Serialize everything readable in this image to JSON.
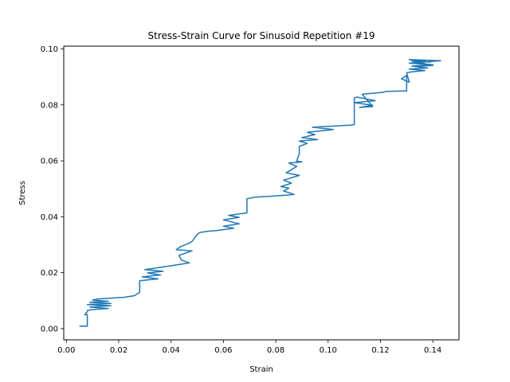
{
  "chart_data": {
    "type": "line",
    "title": "Stress-Strain Curve for Sinusoid Repetition #19",
    "xlabel": "Strain",
    "ylabel": "Stress",
    "xlim": [
      -0.001,
      0.15
    ],
    "ylim": [
      -0.004,
      0.101
    ],
    "xticks": [
      0.0,
      0.02,
      0.04,
      0.06,
      0.08,
      0.1,
      0.12,
      0.14
    ],
    "xtick_labels": [
      "0.00",
      "0.02",
      "0.04",
      "0.06",
      "0.08",
      "0.10",
      "0.12",
      "0.14"
    ],
    "yticks": [
      0.0,
      0.02,
      0.04,
      0.06,
      0.08,
      0.1
    ],
    "ytick_labels": [
      "0.00",
      "0.02",
      "0.04",
      "0.06",
      "0.08",
      "0.10"
    ],
    "grid": false,
    "line_color": "#1f77b4",
    "series": [
      {
        "x": [
          0.005,
          0.008,
          0.008,
          0.007,
          0.008,
          0.008,
          0.01,
          0.016,
          0.009,
          0.017,
          0.008,
          0.017,
          0.009,
          0.016,
          0.01,
          0.012,
          0.017,
          0.02,
          0.022,
          0.026,
          0.027,
          0.028,
          0.028,
          0.035,
          0.029,
          0.036,
          0.031,
          0.037,
          0.03,
          0.033,
          0.047,
          0.044,
          0.043,
          0.048,
          0.042,
          0.044,
          0.046,
          0.047,
          0.048,
          0.05,
          0.051,
          0.055,
          0.057,
          0.064,
          0.06,
          0.066,
          0.06,
          0.066,
          0.062,
          0.069,
          0.069,
          0.072,
          0.079,
          0.084,
          0.087,
          0.083,
          0.085,
          0.082,
          0.086,
          0.083,
          0.089,
          0.084,
          0.088,
          0.085,
          0.09,
          0.088,
          0.089,
          0.089,
          0.092,
          0.089,
          0.096,
          0.09,
          0.095,
          0.092,
          0.102,
          0.094,
          0.109,
          0.11,
          0.11,
          0.111,
          0.118,
          0.11,
          0.117,
          0.112,
          0.117,
          0.113,
          0.121,
          0.122,
          0.13,
          0.13,
          0.128,
          0.131,
          0.13,
          0.132,
          0.137,
          0.131,
          0.138,
          0.132,
          0.14,
          0.131,
          0.143,
          0.131,
          0.139,
          0.132,
          0.14,
          0.134
        ],
        "y": [
          0.0009,
          0.0009,
          0.005,
          0.005,
          0.006,
          0.0065,
          0.0068,
          0.0072,
          0.0077,
          0.0082,
          0.0086,
          0.009,
          0.0094,
          0.0098,
          0.0102,
          0.0106,
          0.0109,
          0.0111,
          0.0112,
          0.0118,
          0.0124,
          0.013,
          0.0171,
          0.0178,
          0.0185,
          0.0192,
          0.0199,
          0.0205,
          0.0211,
          0.0215,
          0.0235,
          0.0245,
          0.0262,
          0.0278,
          0.0282,
          0.0295,
          0.0302,
          0.0306,
          0.0312,
          0.0337,
          0.0344,
          0.0349,
          0.035,
          0.0359,
          0.0366,
          0.0375,
          0.0389,
          0.0398,
          0.0405,
          0.0414,
          0.0464,
          0.047,
          0.0474,
          0.0477,
          0.048,
          0.0492,
          0.0502,
          0.0508,
          0.052,
          0.0531,
          0.0548,
          0.0557,
          0.058,
          0.0592,
          0.0596,
          0.0599,
          0.0625,
          0.0652,
          0.0662,
          0.0671,
          0.0676,
          0.0683,
          0.0694,
          0.0702,
          0.0712,
          0.072,
          0.0728,
          0.073,
          0.0824,
          0.0828,
          0.0815,
          0.0808,
          0.0799,
          0.0791,
          0.0794,
          0.0838,
          0.0845,
          0.0848,
          0.085,
          0.0906,
          0.0893,
          0.0881,
          0.0915,
          0.0918,
          0.0923,
          0.0928,
          0.0932,
          0.0939,
          0.0944,
          0.0949,
          0.0958,
          0.0962,
          0.0953,
          0.0957,
          0.0941,
          0.0938
        ]
      }
    ]
  }
}
